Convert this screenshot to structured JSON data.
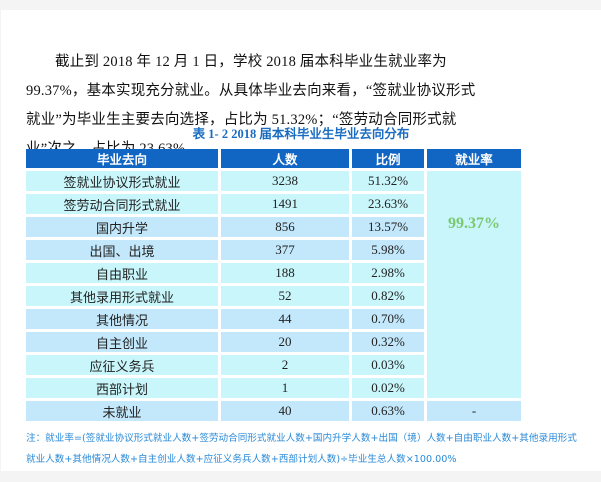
{
  "paragraph": "截止到 2018 年 12 月 1 日，学校 2018 届本科毕业生就业率为 99.37%，基本实现充分就业。从具体毕业去向来看，“签就业协议形式就业”为毕业生主要去向选择，占比为 51.32%；“签劳动合同形式就业”次之，占比为 23.63%。",
  "table": {
    "title": "表 1- 2    2018 届本科毕业生毕业去向分布",
    "headers": [
      "毕业去向",
      "人数",
      "比例",
      "就业率"
    ],
    "employment_rate": "99.37%",
    "unemployed_rate": "-",
    "rows": [
      {
        "destination": "签就业协议形式就业",
        "count": "3238",
        "ratio": "51.32%"
      },
      {
        "destination": "签劳动合同形式就业",
        "count": "1491",
        "ratio": "23.63%"
      },
      {
        "destination": "国内升学",
        "count": "856",
        "ratio": "13.57%"
      },
      {
        "destination": "出国、出境",
        "count": "377",
        "ratio": "5.98%"
      },
      {
        "destination": "自由职业",
        "count": "188",
        "ratio": "2.98%"
      },
      {
        "destination": "其他录用形式就业",
        "count": "52",
        "ratio": "0.82%"
      },
      {
        "destination": "其他情况",
        "count": "44",
        "ratio": "0.70%"
      },
      {
        "destination": "自主创业",
        "count": "20",
        "ratio": "0.32%"
      },
      {
        "destination": "应征义务兵",
        "count": "2",
        "ratio": "0.03%"
      },
      {
        "destination": "西部计划",
        "count": "1",
        "ratio": "0.02%"
      },
      {
        "destination": "未就业",
        "count": "40",
        "ratio": "0.63%"
      }
    ]
  },
  "note": "注：就业率=(签就业协议形式就业人数+签劳动合同形式就业人数+国内升学人数+出国（境）人数+自由职业人数+其他录用形式就业人数+其他情况人数+自主创业人数+应征义务兵人数+西部计划人数)÷毕业生总人数×100.00%",
  "colors": {
    "header_bg": "#1166c4",
    "row_tint_a": "#c8f6fb",
    "row_tint_b": "#c3e8fb",
    "rate_text": "#7cc870",
    "title_text": "#1a6cc0",
    "note_text": "#2a8ad8"
  }
}
